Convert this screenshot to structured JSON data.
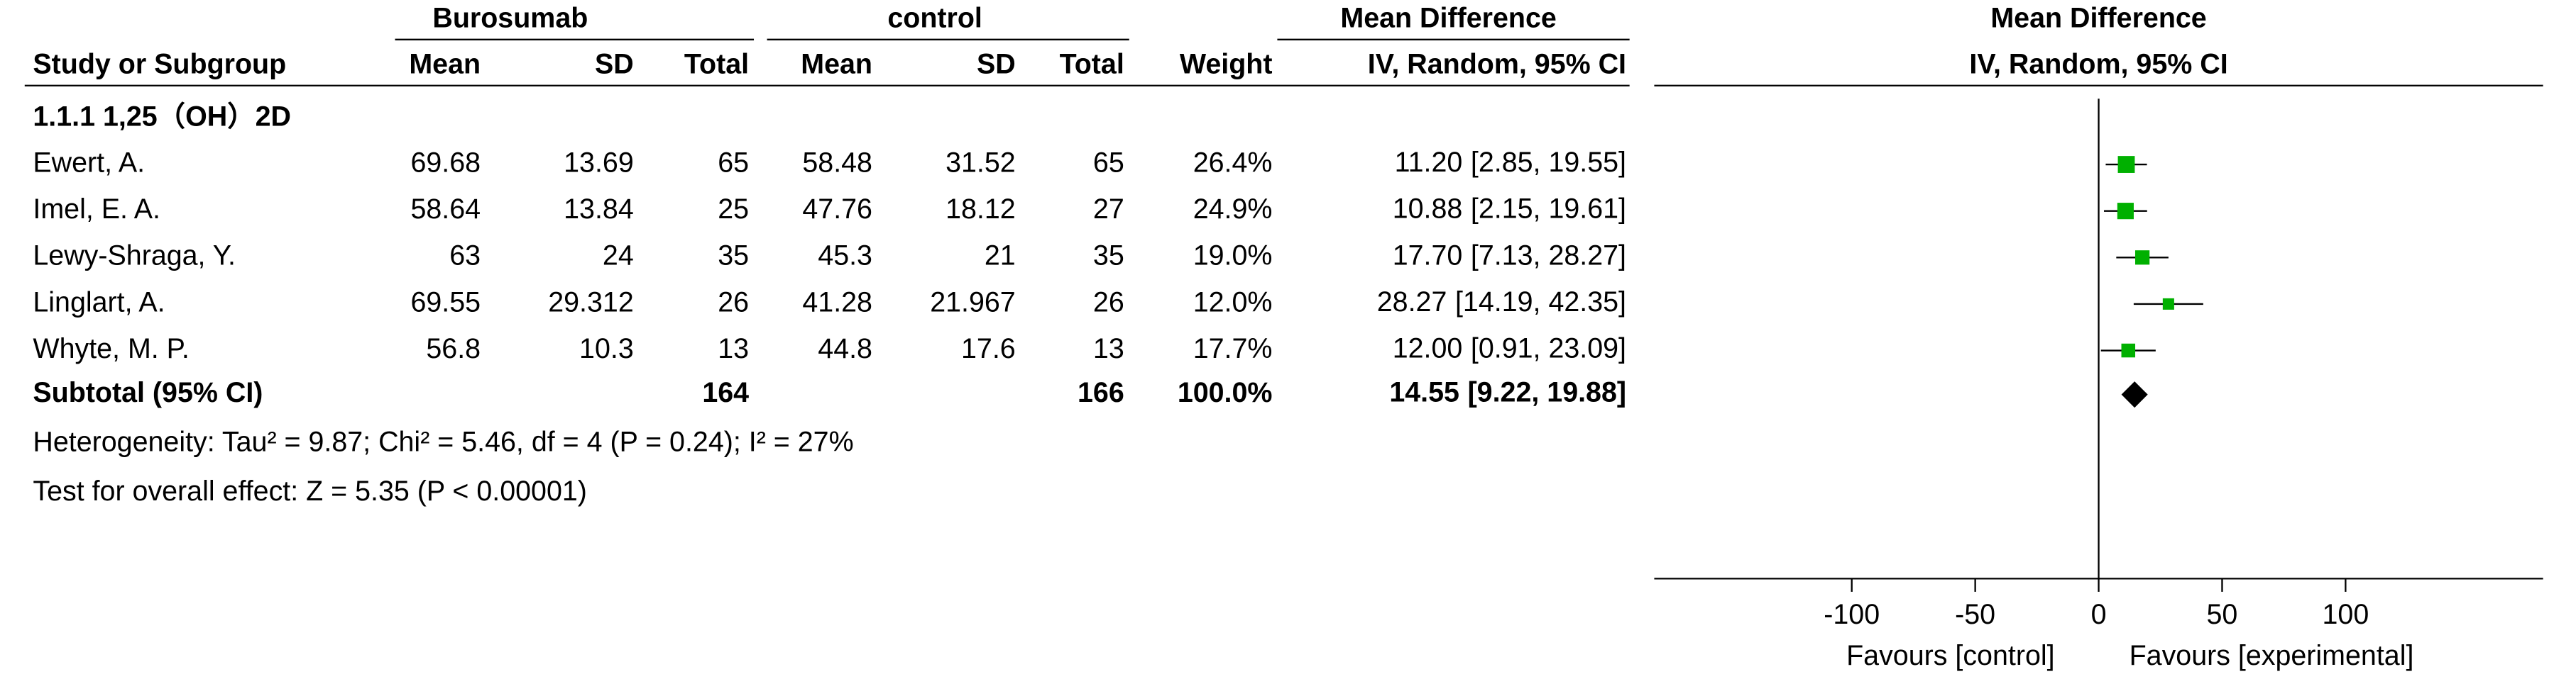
{
  "chart_data": {
    "type": "forest",
    "group_headers": {
      "experimental": "Burosumab",
      "control": "control",
      "effect": "Mean Difference",
      "plot": "Mean Difference"
    },
    "columns": {
      "study": "Study or Subgroup",
      "exp_mean": "Mean",
      "exp_sd": "SD",
      "exp_total": "Total",
      "ctl_mean": "Mean",
      "ctl_sd": "SD",
      "ctl_total": "Total",
      "weight": "Weight",
      "effect": "IV, Random, 95% CI",
      "plot": "IV, Random, 95% CI"
    },
    "subgroup": "1.1.1 1,25（OH）2D",
    "studies": [
      {
        "name": "Ewert, A.",
        "exp_mean": 69.68,
        "exp_sd": 13.69,
        "exp_total": 65,
        "ctl_mean": 58.48,
        "ctl_sd": 31.52,
        "ctl_total": 65,
        "weight": {
          "value": 26.4,
          "label": "26.4%"
        },
        "md": {
          "value": 11.2,
          "label": "11.20"
        },
        "ci_low": 2.85,
        "ci_high": 19.55,
        "ci_label": "[2.85, 19.55]"
      },
      {
        "name": "Imel, E. A.",
        "exp_mean": 58.64,
        "exp_sd": 13.84,
        "exp_total": 25,
        "ctl_mean": 47.76,
        "ctl_sd": 18.12,
        "ctl_total": 27,
        "weight": {
          "value": 24.9,
          "label": "24.9%"
        },
        "md": 10.88,
        "ci_low": 2.15,
        "ci_high": 19.61,
        "ci_label": "[2.15, 19.61]"
      },
      {
        "name": "Lewy-Shraga, Y.",
        "exp_mean": 63,
        "exp_sd": 24,
        "exp_total": 35,
        "ctl_mean": 45.3,
        "ctl_sd": 21,
        "ctl_total": 35,
        "weight": {
          "value": 19.0,
          "label": "19.0%"
        },
        "md": {
          "value": 17.7,
          "label": "17.70"
        },
        "ci_low": 7.13,
        "ci_high": 28.27,
        "ci_label": "[7.13, 28.27]"
      },
      {
        "name": "Linglart, A.",
        "exp_mean": 69.55,
        "exp_sd": 29.312,
        "exp_total": 26,
        "ctl_mean": 41.28,
        "ctl_sd": 21.967,
        "ctl_total": 26,
        "weight": {
          "value": 12.0,
          "label": "12.0%"
        },
        "md": 28.27,
        "ci_low": 14.19,
        "ci_high": 42.35,
        "ci_label": "[14.19, 42.35]"
      },
      {
        "name": "Whyte, M. P.",
        "exp_mean": 56.8,
        "exp_sd": 10.3,
        "exp_total": 13,
        "ctl_mean": 44.8,
        "ctl_sd": 17.6,
        "ctl_total": 13,
        "weight": {
          "value": 17.7,
          "label": "17.7%"
        },
        "md": {
          "value": 12,
          "label": "12.00"
        },
        "ci_low": 0.91,
        "ci_high": 23.09,
        "ci_label": "[0.91, 23.09]"
      }
    ],
    "subtotal": {
      "name": "Subtotal (95% CI)",
      "exp_total": 164,
      "ctl_total": 166,
      "weight": {
        "value": 100,
        "label": "100.0%"
      },
      "md": 14.55,
      "ci_low": 9.22,
      "ci_high": 19.88,
      "ci_label": "[9.22, 19.88]"
    },
    "heterogeneity": "Heterogeneity: Tau² = 9.87; Chi² = 5.46, df = 4 (P = 0.24); I² = 27%",
    "overall_effect": "Test for overall effect: Z = 5.35 (P < 0.00001)",
    "xlim": [
      -180,
      180
    ],
    "xticks": [
      -100,
      -50,
      0,
      50,
      100
    ],
    "favours_left": "Favours [control]",
    "favours_right": "Favours [experimental]",
    "color": "#00b000"
  }
}
